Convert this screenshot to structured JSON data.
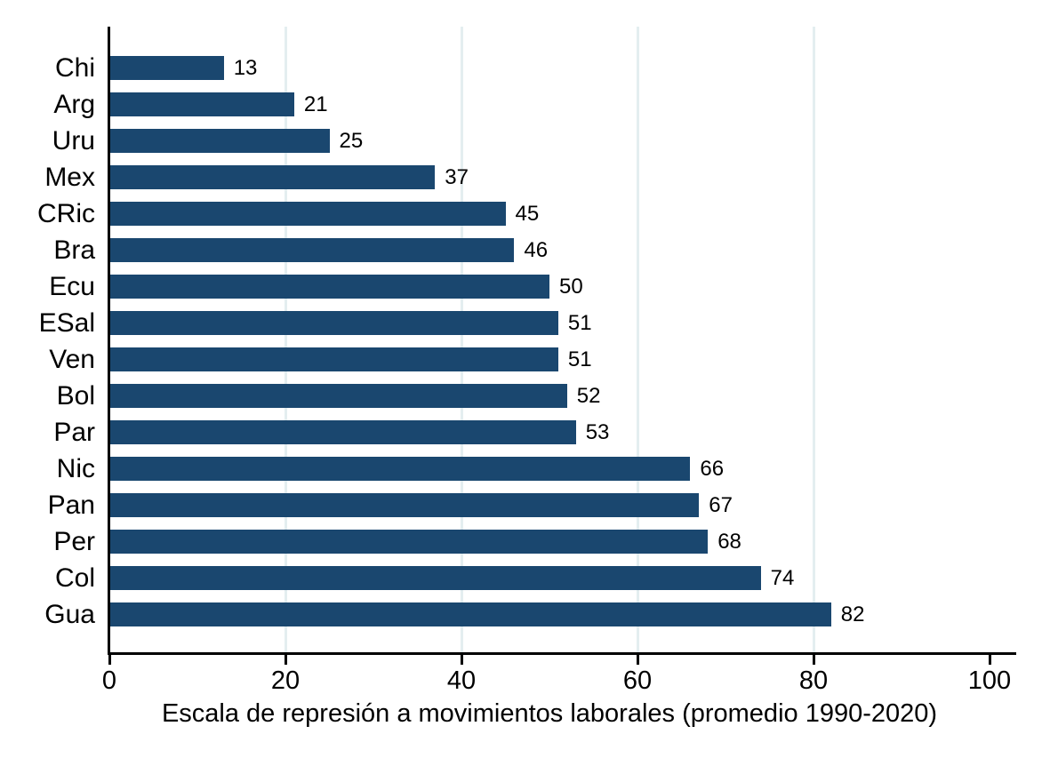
{
  "chart_data": {
    "type": "bar",
    "orientation": "horizontal",
    "categories": [
      "Chi",
      "Arg",
      "Uru",
      "Mex",
      "CRic",
      "Bra",
      "Ecu",
      "ESal",
      "Ven",
      "Bol",
      "Par",
      "Nic",
      "Pan",
      "Per",
      "Col",
      "Gua"
    ],
    "values": [
      13,
      21,
      25,
      37,
      45,
      46,
      50,
      51,
      51,
      52,
      53,
      66,
      67,
      68,
      74,
      82
    ],
    "value_labels": [
      "13",
      "21",
      "25",
      "37",
      "45",
      "46",
      "50",
      "51",
      "51",
      "52",
      "53",
      "66",
      "67",
      "68",
      "74",
      "82"
    ],
    "title": "",
    "xlabel": "Escala de represión a movimientos laborales (promedio 1990-2020)",
    "ylabel": "",
    "xlim": [
      0,
      100
    ],
    "xticks": [
      0,
      20,
      40,
      60,
      80,
      100
    ],
    "gridlines_x": [
      20,
      40,
      60,
      80
    ],
    "grid": true,
    "legend": "none",
    "colors": {
      "bar": "#1a476f",
      "gridline": "#e4eef0",
      "axis": "#000000",
      "text": "#000000",
      "background": "#ffffff"
    }
  }
}
